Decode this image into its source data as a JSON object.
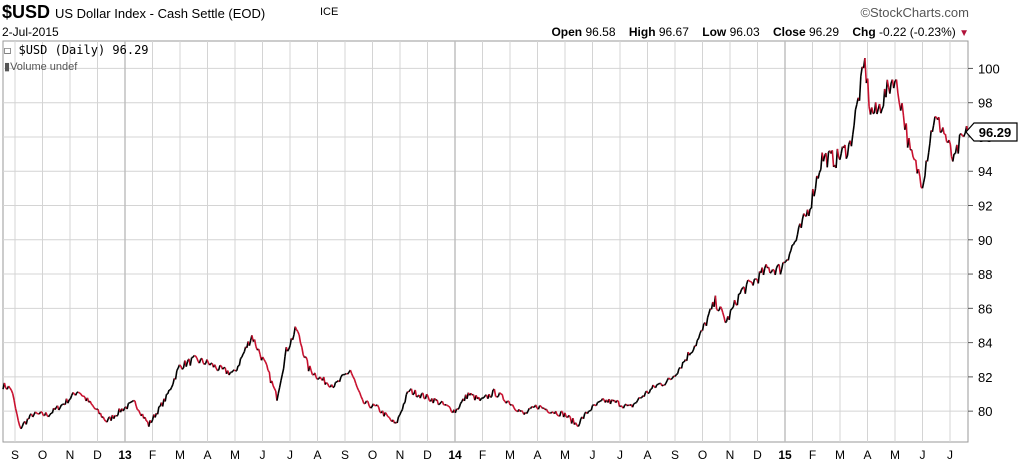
{
  "header": {
    "symbol": "$USD",
    "description": "US Dollar Index - Cash Settle (EOD)",
    "exchange": "ICE",
    "brand": "©StockCharts.com",
    "date": "2-Jul-2015",
    "open_label": "Open",
    "open": "96.58",
    "high_label": "High",
    "high": "96.67",
    "low_label": "Low",
    "low": "96.03",
    "close_label": "Close",
    "close": "96.29",
    "chg_label": "Chg",
    "chg": "-0.22 (-0.23%)"
  },
  "legend": {
    "series": "$USD (Daily) 96.29",
    "volume": "Volume undef"
  },
  "colors": {
    "up": "#000000",
    "down": "#c8102e",
    "grid": "#d4d4d4",
    "frame": "#9a9a9a"
  },
  "chart_data": {
    "type": "line",
    "series": [
      {
        "name": "$USD (Daily)",
        "last_value": "96.29"
      }
    ],
    "x_tick_labels": [
      "S",
      "O",
      "N",
      "D",
      "13",
      "F",
      "M",
      "A",
      "M",
      "J",
      "J",
      "A",
      "S",
      "O",
      "N",
      "D",
      "14",
      "F",
      "M",
      "A",
      "M",
      "J",
      "J",
      "A",
      "S",
      "O",
      "N",
      "D",
      "15",
      "F",
      "M",
      "A",
      "M",
      "J",
      "J"
    ],
    "y_ticks": [
      80,
      82,
      84,
      86,
      88,
      90,
      92,
      94,
      96,
      98,
      100
    ],
    "ylim": [
      78.2,
      101.6
    ],
    "y_axis_side": "right",
    "x_start": "2012-08-27",
    "x_end": "2015-07-02",
    "points": [
      [
        "2012-08-27",
        81.5
      ],
      [
        "2012-09-05",
        81.3
      ],
      [
        "2012-09-14",
        79.0
      ],
      [
        "2012-09-28",
        79.8
      ],
      [
        "2012-10-15",
        79.8
      ],
      [
        "2012-11-02",
        80.5
      ],
      [
        "2012-11-16",
        81.2
      ],
      [
        "2012-12-03",
        80.2
      ],
      [
        "2012-12-17",
        79.4
      ],
      [
        "2013-01-02",
        80.1
      ],
      [
        "2013-01-16",
        80.5
      ],
      [
        "2013-01-31",
        79.2
      ],
      [
        "2013-02-19",
        80.8
      ],
      [
        "2013-03-05",
        82.6
      ],
      [
        "2013-03-21",
        83.0
      ],
      [
        "2013-04-05",
        82.8
      ],
      [
        "2013-04-19",
        82.4
      ],
      [
        "2013-05-03",
        82.2
      ],
      [
        "2013-05-22",
        84.4
      ],
      [
        "2013-06-07",
        82.5
      ],
      [
        "2013-06-18",
        80.8
      ],
      [
        "2013-06-28",
        83.5
      ],
      [
        "2013-07-09",
        84.8
      ],
      [
        "2013-07-22",
        82.5
      ],
      [
        "2013-08-06",
        81.8
      ],
      [
        "2013-08-20",
        81.5
      ],
      [
        "2013-09-05",
        82.4
      ],
      [
        "2013-09-18",
        80.5
      ],
      [
        "2013-10-04",
        80.2
      ],
      [
        "2013-10-24",
        79.2
      ],
      [
        "2013-11-07",
        81.2
      ],
      [
        "2013-11-22",
        80.9
      ],
      [
        "2013-12-06",
        80.6
      ],
      [
        "2013-12-27",
        80.0
      ],
      [
        "2014-01-10",
        81.0
      ],
      [
        "2014-01-24",
        80.6
      ],
      [
        "2014-02-07",
        81.1
      ],
      [
        "2014-02-24",
        80.5
      ],
      [
        "2014-03-11",
        79.8
      ],
      [
        "2014-03-25",
        80.3
      ],
      [
        "2014-04-10",
        80.0
      ],
      [
        "2014-04-24",
        79.8
      ],
      [
        "2014-05-07",
        79.2
      ],
      [
        "2014-05-21",
        80.1
      ],
      [
        "2014-06-05",
        80.6
      ],
      [
        "2014-06-19",
        80.5
      ],
      [
        "2014-07-03",
        80.2
      ],
      [
        "2014-07-17",
        80.9
      ],
      [
        "2014-08-01",
        81.5
      ],
      [
        "2014-08-15",
        81.8
      ],
      [
        "2014-08-29",
        82.8
      ],
      [
        "2014-09-15",
        84.2
      ],
      [
        "2014-10-03",
        86.4
      ],
      [
        "2014-10-15",
        85.2
      ],
      [
        "2014-10-31",
        87.0
      ],
      [
        "2014-11-14",
        87.6
      ],
      [
        "2014-11-28",
        88.3
      ],
      [
        "2014-12-12",
        88.3
      ],
      [
        "2014-12-29",
        90.0
      ],
      [
        "2015-01-13",
        92.0
      ],
      [
        "2015-01-26",
        94.8
      ],
      [
        "2015-02-10",
        94.7
      ],
      [
        "2015-02-25",
        95.5
      ],
      [
        "2015-03-13",
        100.3
      ],
      [
        "2015-03-19",
        97.5
      ],
      [
        "2015-03-26",
        97.4
      ],
      [
        "2015-04-13",
        99.5
      ],
      [
        "2015-04-22",
        97.8
      ],
      [
        "2015-05-01",
        95.0
      ],
      [
        "2015-05-14",
        93.4
      ],
      [
        "2015-05-26",
        97.0
      ],
      [
        "2015-06-05",
        96.5
      ],
      [
        "2015-06-17",
        94.5
      ],
      [
        "2015-06-23",
        95.6
      ],
      [
        "2015-07-02",
        96.29
      ]
    ]
  }
}
